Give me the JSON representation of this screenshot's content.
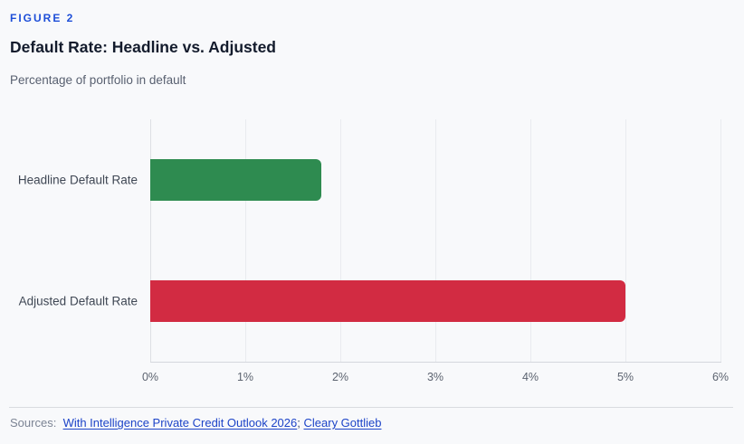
{
  "header": {
    "figure_label": "FIGURE 2",
    "title": "Default Rate: Headline vs. Adjusted",
    "subtitle": "Percentage of portfolio in default"
  },
  "chart_data": {
    "type": "bar",
    "orientation": "horizontal",
    "title": "Default Rate: Headline vs. Adjusted",
    "subtitle": "Percentage of portfolio in default",
    "categories": [
      "Headline Default Rate",
      "Adjusted Default Rate"
    ],
    "values": [
      1.8,
      5.0
    ],
    "unit": "%",
    "bar_colors": [
      "#2e8b50",
      "#d22b42"
    ],
    "xlim": [
      0,
      6
    ],
    "x_ticks": [
      "0%",
      "1%",
      "2%",
      "3%",
      "4%",
      "5%",
      "6%"
    ],
    "xlabel": "",
    "ylabel": "",
    "grid": true,
    "legend": false
  },
  "footer": {
    "prefix": "Sources:",
    "links": [
      "With Intelligence Private Credit Outlook 2026",
      "Cleary Gottlieb"
    ],
    "separator": ";"
  },
  "colors": {
    "background": "#f8f9fb",
    "figure_label_blue": "#1d4ed8",
    "title_text": "#131b2c",
    "subtitle_text": "#586070",
    "bar_green": "#2e8b50",
    "bar_red": "#d22b42",
    "link_blue": "#1d44c8",
    "gridline": "#e9ebef",
    "axis_line": "#d4d7dd"
  }
}
